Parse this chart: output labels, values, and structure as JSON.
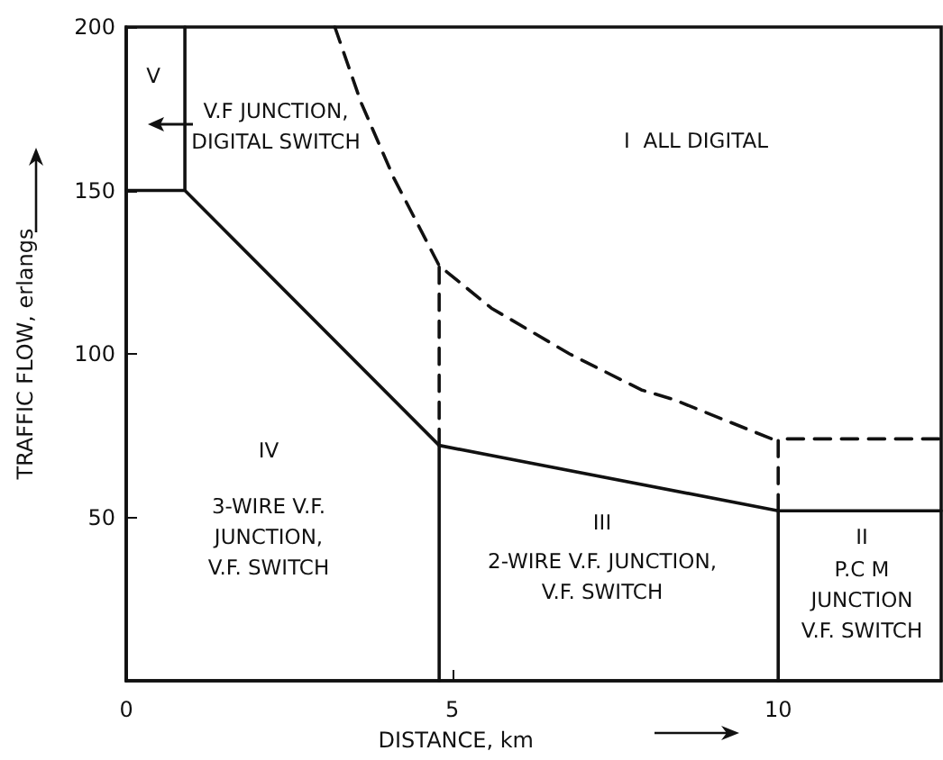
{
  "chart_data": {
    "type": "line",
    "xlabel": "DISTANCE, km",
    "ylabel": "TRAFFIC FLOW, erlangs",
    "xlim": [
      0,
      12.5
    ],
    "ylim": [
      0,
      200
    ],
    "xticks": [
      0,
      5,
      10
    ],
    "yticks": [
      50,
      100,
      150,
      200
    ],
    "grid": false,
    "marker": "none",
    "series": [
      {
        "color": "#111111",
        "line_style": "solid",
        "x": [
          0,
          0.9,
          4.8,
          10,
          12.5
        ],
        "values": [
          150,
          150,
          72,
          52,
          52
        ]
      },
      {
        "color": "#111111",
        "line_style": "solid",
        "x": [
          0.9,
          0.9
        ],
        "values": [
          150,
          200
        ]
      },
      {
        "color": "#111111",
        "line_style": "solid",
        "x": [
          4.8,
          4.8
        ],
        "values": [
          0,
          72
        ]
      },
      {
        "color": "#111111",
        "line_style": "solid",
        "x": [
          10,
          10
        ],
        "values": [
          0,
          52
        ]
      },
      {
        "color": "#111111",
        "line_style": "dashed",
        "x": [
          3.2,
          3.6,
          4.1,
          4.8,
          5.6,
          6.8,
          7.9,
          8.4,
          9.9
        ],
        "values": [
          200,
          177,
          154,
          127,
          114,
          100,
          89,
          86,
          74
        ]
      },
      {
        "color": "#111111",
        "line_style": "dashed",
        "x": [
          4.8,
          4.8
        ],
        "values": [
          72,
          127
        ]
      },
      {
        "color": "#111111",
        "line_style": "dashed",
        "x": [
          10,
          10,
          12.5
        ],
        "values": [
          52,
          74,
          74
        ]
      }
    ],
    "annotations": [
      "V",
      "V.F JUNCTION,\nDIGITAL SWITCH",
      "I  ALL DIGITAL",
      "IV",
      "3-WIRE V.F.\nJUNCTION,\nV.F. SWITCH",
      "III",
      "2-WIRE V.F. JUNCTION,\nV.F. SWITCH",
      "II",
      "P.C M\nJUNCTION\nV.F. SWITCH"
    ]
  }
}
